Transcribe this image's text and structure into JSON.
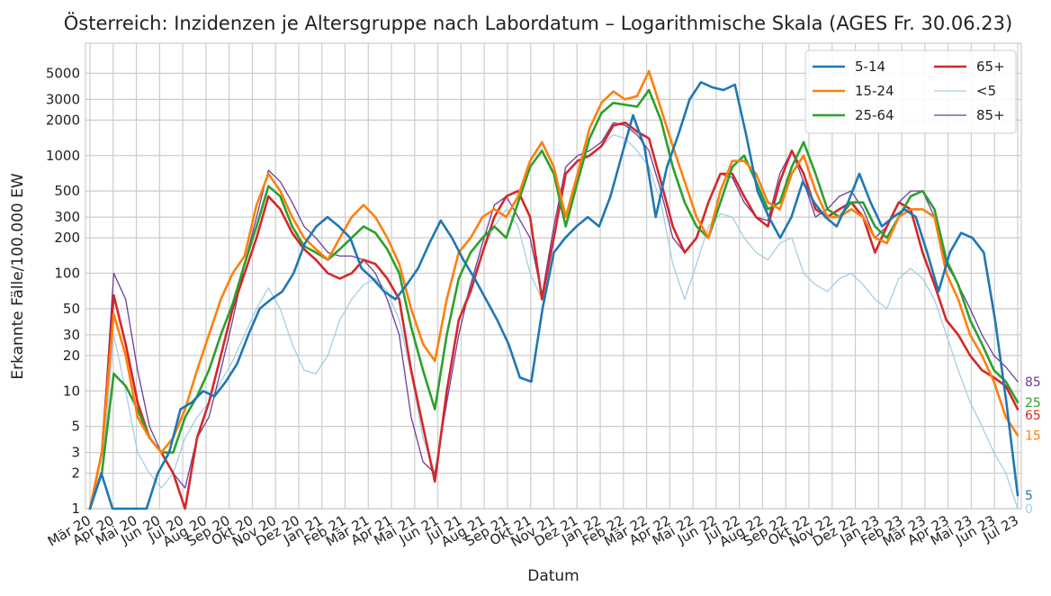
{
  "chart_data": {
    "type": "line",
    "title": "Österreich: Inzidenzen je Altersgruppe nach Labordatum – Logarithmische Skala (AGES Fr. 30.06.23)",
    "xlabel": "Datum",
    "ylabel": "Erkannte Fälle/100.000 EW",
    "y_scale": "log",
    "ylim": [
      1,
      9000
    ],
    "yticks": [
      1,
      2,
      3,
      5,
      10,
      20,
      30,
      50,
      100,
      200,
      300,
      500,
      1000,
      2000,
      3000,
      5000
    ],
    "ytick_labels": [
      "1",
      "2",
      "3",
      "5",
      "10",
      "20",
      "30",
      "50",
      "100",
      "200",
      "300",
      "500",
      "1000",
      "2000",
      "3000",
      "5000"
    ],
    "x_range": [
      "Mär 20",
      "Jul 23"
    ],
    "x_tick_labels": [
      "Mär 20",
      "Apr 20",
      "Mai 20",
      "Jun 20",
      "Jul 20",
      "Aug 20",
      "Sep 20",
      "Okt 20",
      "Nov 20",
      "Dez 20",
      "Jan 21",
      "Feb 21",
      "Mär 21",
      "Apr 21",
      "Mai 21",
      "Jun 21",
      "Jul 21",
      "Aug 21",
      "Sep 21",
      "Okt 21",
      "Nov 21",
      "Dez 21",
      "Jan 22",
      "Feb 22",
      "Mär 22",
      "Apr 22",
      "Mai 22",
      "Jun 22",
      "Jul 22",
      "Aug 22",
      "Sep 22",
      "Okt 22",
      "Nov 22",
      "Dez 22",
      "Jan 23",
      "Feb 23",
      "Mär 23",
      "Apr 23",
      "Mai 23",
      "Jun 23",
      "Jul 23"
    ],
    "grid": true,
    "legend_position": "top-right",
    "legend_columns": 2,
    "series": [
      {
        "name": "5-14",
        "color": "#1f77b4",
        "width": 2.6,
        "end_label": "5",
        "values": [
          1,
          2,
          1,
          1,
          1,
          1,
          2,
          3,
          7,
          8,
          10,
          9,
          12,
          17,
          30,
          50,
          60,
          70,
          100,
          180,
          250,
          300,
          250,
          200,
          110,
          90,
          70,
          60,
          80,
          110,
          180,
          280,
          200,
          130,
          90,
          60,
          40,
          25,
          13,
          12,
          50,
          150,
          200,
          250,
          300,
          250,
          450,
          1000,
          2200,
          1200,
          300,
          800,
          1500,
          3000,
          4200,
          3800,
          3600,
          4000,
          1500,
          500,
          300,
          200,
          300,
          600,
          400,
          300,
          250,
          400,
          700,
          400,
          250,
          300,
          350,
          300,
          150,
          70,
          150,
          220,
          200,
          150,
          40,
          8,
          1.3
        ]
      },
      {
        "name": "15-24",
        "color": "#ff7f0e",
        "width": 2.6,
        "end_label": "15",
        "values": [
          1,
          3,
          45,
          20,
          6,
          4,
          3,
          4,
          7,
          15,
          30,
          60,
          100,
          140,
          380,
          700,
          500,
          300,
          200,
          160,
          130,
          200,
          300,
          380,
          300,
          200,
          120,
          50,
          25,
          18,
          60,
          150,
          200,
          300,
          350,
          300,
          450,
          900,
          1300,
          800,
          300,
          700,
          1700,
          2800,
          3500,
          3000,
          3200,
          5200,
          2500,
          1200,
          600,
          300,
          200,
          500,
          900,
          900,
          700,
          400,
          350,
          700,
          1000,
          500,
          300,
          300,
          350,
          300,
          200,
          180,
          300,
          350,
          350,
          300,
          100,
          60,
          30,
          20,
          12,
          6,
          4.2
        ]
      },
      {
        "name": "25-64",
        "color": "#2ca02c",
        "width": 2.6,
        "end_label": "25",
        "values": [
          1,
          2,
          14,
          11,
          7,
          4,
          3,
          3,
          6,
          9,
          15,
          30,
          55,
          120,
          250,
          550,
          450,
          250,
          170,
          150,
          130,
          160,
          200,
          250,
          220,
          160,
          100,
          35,
          15,
          7,
          30,
          90,
          150,
          200,
          250,
          200,
          400,
          800,
          1100,
          700,
          250,
          600,
          1400,
          2300,
          2800,
          2700,
          2600,
          3600,
          2000,
          800,
          400,
          250,
          200,
          400,
          800,
          1000,
          600,
          350,
          400,
          800,
          1300,
          700,
          350,
          300,
          400,
          400,
          250,
          200,
          300,
          450,
          500,
          350,
          130,
          80,
          40,
          25,
          15,
          12,
          8
        ]
      },
      {
        "name": "65+",
        "color": "#d62728",
        "width": 2.6,
        "end_label": "65",
        "values": [
          1,
          3,
          65,
          25,
          8,
          4,
          3,
          2,
          1,
          4,
          8,
          20,
          50,
          100,
          200,
          450,
          350,
          220,
          160,
          130,
          100,
          90,
          100,
          130,
          120,
          90,
          60,
          15,
          5,
          1.7,
          10,
          40,
          70,
          150,
          300,
          450,
          500,
          300,
          60,
          200,
          700,
          900,
          1000,
          1200,
          1800,
          1900,
          1600,
          1400,
          600,
          250,
          150,
          200,
          400,
          700,
          700,
          450,
          300,
          250,
          600,
          1100,
          700,
          350,
          300,
          350,
          400,
          300,
          150,
          250,
          400,
          350,
          150,
          80,
          40,
          30,
          20,
          15,
          13,
          11,
          7
        ]
      },
      {
        "name": "<5",
        "color": "#a6cee3",
        "width": 1.3,
        "end_label": "0",
        "values": [
          1,
          2,
          30,
          10,
          3,
          2,
          1.5,
          2,
          4,
          6,
          8,
          12,
          18,
          30,
          50,
          75,
          50,
          25,
          15,
          14,
          20,
          40,
          60,
          80,
          90,
          70,
          40,
          14,
          4,
          2,
          10,
          40,
          80,
          150,
          250,
          350,
          250,
          100,
          60,
          200,
          700,
          900,
          1000,
          1200,
          1500,
          1400,
          1100,
          800,
          400,
          120,
          60,
          120,
          250,
          320,
          300,
          200,
          150,
          130,
          180,
          200,
          100,
          80,
          70,
          90,
          100,
          80,
          60,
          50,
          90,
          110,
          90,
          60,
          30,
          15,
          8,
          5,
          3,
          2,
          1
        ]
      },
      {
        "name": "85+",
        "color": "#6a3d9a",
        "width": 1.3,
        "end_label": "85",
        "values": [
          1,
          3,
          100,
          60,
          15,
          5,
          3,
          2,
          1.5,
          4,
          6,
          15,
          40,
          120,
          300,
          750,
          600,
          400,
          250,
          200,
          150,
          140,
          140,
          130,
          100,
          60,
          30,
          6,
          2.5,
          2,
          8,
          30,
          80,
          180,
          380,
          450,
          300,
          200,
          65,
          250,
          800,
          1000,
          1100,
          1300,
          1900,
          1800,
          1500,
          1100,
          500,
          200,
          150,
          200,
          400,
          700,
          650,
          400,
          300,
          280,
          700,
          1100,
          600,
          300,
          350,
          450,
          500,
          350,
          200,
          250,
          400,
          500,
          500,
          300,
          120,
          80,
          50,
          30,
          20,
          16,
          12
        ]
      }
    ]
  }
}
